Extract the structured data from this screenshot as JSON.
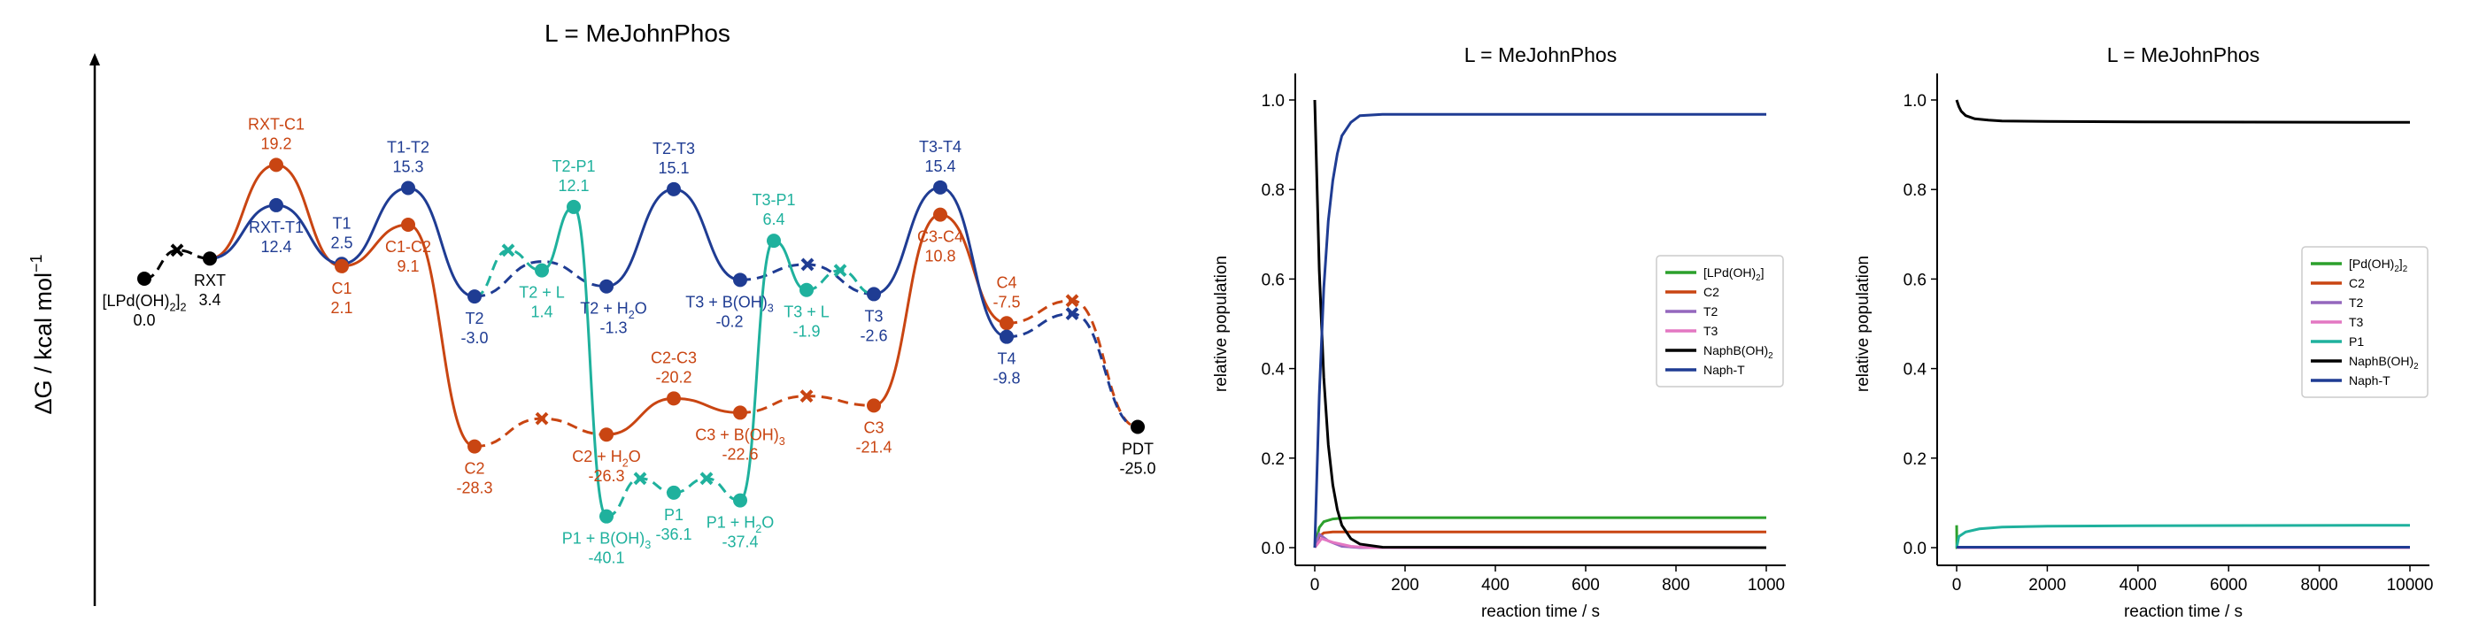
{
  "chart_data": [
    {
      "type": "energy-profile",
      "title": "L = MeJohnPhos",
      "ylabel": "ΔG / kcal mol",
      "ylabel_sup": "−1",
      "colors": {
        "black": "#000000",
        "orange": "#c94512",
        "blue": "#1f3c93",
        "teal": "#1fb19d"
      },
      "states": [
        {
          "id": "LPdOH2",
          "label": "[LPd(OH)",
          "label_sub": "2",
          "label_tail": "]",
          "label_sub2": "2",
          "value": "0.0",
          "g": 0.0,
          "color": "black",
          "label_pos": "below"
        },
        {
          "id": "RXT",
          "label": "RXT",
          "value": "3.4",
          "g": 3.4,
          "color": "black",
          "label_pos": "below"
        },
        {
          "id": "RXT-C1",
          "label": "RXT-C1",
          "value": "19.2",
          "g": 19.2,
          "color": "orange",
          "label_pos": "above"
        },
        {
          "id": "RXT-T1",
          "label": "RXT-T1",
          "value": "12.4",
          "g": 12.4,
          "color": "blue",
          "label_pos": "below"
        },
        {
          "id": "T1",
          "label": "T1",
          "value": "2.5",
          "g": 2.5,
          "color": "blue",
          "label_pos": "above"
        },
        {
          "id": "C1",
          "label": "C1",
          "value": "2.1",
          "g": 2.1,
          "color": "orange",
          "label_pos": "below"
        },
        {
          "id": "T1-T2",
          "label": "T1-T2",
          "value": "15.3",
          "g": 15.3,
          "color": "blue",
          "label_pos": "above"
        },
        {
          "id": "C1-C2",
          "label": "C1-C2",
          "value": "9.1",
          "g": 9.1,
          "color": "orange",
          "label_pos": "below"
        },
        {
          "id": "T2",
          "label": "T2",
          "value": "-3.0",
          "g": -3.0,
          "color": "blue",
          "label_pos": "below"
        },
        {
          "id": "T2+L",
          "label": "T2 + L",
          "value": "1.4",
          "g": 1.4,
          "color": "teal",
          "label_pos": "below"
        },
        {
          "id": "T2-P1",
          "label": "T2-P1",
          "value": "12.1",
          "g": 12.1,
          "color": "teal",
          "label_pos": "above"
        },
        {
          "id": "T2+H2O",
          "label": "T2 + H",
          "label_sub": "2",
          "label_tail": "O",
          "value": "-1.3",
          "g": -1.3,
          "color": "blue",
          "label_pos": "below"
        },
        {
          "id": "T2-T3",
          "label": "T2-T3",
          "value": "15.1",
          "g": 15.1,
          "color": "blue",
          "label_pos": "above"
        },
        {
          "id": "T3+BOH3",
          "label": "T3 + B(OH)",
          "label_sub": "3",
          "value": "-0.2",
          "g": -0.2,
          "color": "blue",
          "label_pos": "below"
        },
        {
          "id": "T3-P1",
          "label": "T3-P1",
          "value": "6.4",
          "g": 6.4,
          "color": "teal",
          "label_pos": "above"
        },
        {
          "id": "T3+L",
          "label": "T3 + L",
          "value": "-1.9",
          "g": -1.9,
          "color": "teal",
          "label_pos": "below"
        },
        {
          "id": "T3",
          "label": "T3",
          "value": "-2.6",
          "g": -2.6,
          "color": "blue",
          "label_pos": "below"
        },
        {
          "id": "T3-T4",
          "label": "T3-T4",
          "value": "15.4",
          "g": 15.4,
          "color": "blue",
          "label_pos": "above"
        },
        {
          "id": "C3-C4",
          "label": "C3-C4",
          "value": "10.8",
          "g": 10.8,
          "color": "orange",
          "label_pos": "below"
        },
        {
          "id": "C4",
          "label": "C4",
          "value": "-7.5",
          "g": -7.5,
          "color": "orange",
          "label_pos": "above"
        },
        {
          "id": "T4",
          "label": "T4",
          "value": "-9.8",
          "g": -9.8,
          "color": "blue",
          "label_pos": "below"
        },
        {
          "id": "PDT",
          "label": "PDT",
          "value": "-25.0",
          "g": -25.0,
          "color": "black",
          "label_pos": "below"
        },
        {
          "id": "C2",
          "label": "C2",
          "value": "-28.3",
          "g": -28.3,
          "color": "orange",
          "label_pos": "below"
        },
        {
          "id": "C2+H2O",
          "label": "C2 + H",
          "label_sub": "2",
          "label_tail": "O",
          "value": "-26.3",
          "g": -26.3,
          "color": "orange",
          "label_pos": "below"
        },
        {
          "id": "C2-C3",
          "label": "C2-C3",
          "value": "-20.2",
          "g": -20.2,
          "color": "orange",
          "label_pos": "above"
        },
        {
          "id": "C3+BOH3",
          "label": "C3 + B(OH)",
          "label_sub": "3",
          "value": "-22.6",
          "g": -22.6,
          "color": "orange",
          "label_pos": "below"
        },
        {
          "id": "C3",
          "label": "C3",
          "value": "-21.4",
          "g": -21.4,
          "color": "orange",
          "label_pos": "below"
        },
        {
          "id": "P1+BOH3",
          "label": "P1 + B(OH)",
          "label_sub": "3",
          "value": "-40.1",
          "g": -40.1,
          "color": "teal",
          "label_pos": "below"
        },
        {
          "id": "P1",
          "label": "P1",
          "value": "-36.1",
          "g": -36.1,
          "color": "teal",
          "label_pos": "below"
        },
        {
          "id": "P1+H2O",
          "label": "P1 + H",
          "label_sub": "2",
          "label_tail": "O",
          "value": "-37.4",
          "g": -37.4,
          "color": "teal",
          "label_pos": "below"
        }
      ]
    },
    {
      "type": "line",
      "title": "L = MeJohnPhos",
      "xlabel": "reaction time / s",
      "ylabel": "relative population",
      "xlim": [
        0,
        1000
      ],
      "ylim": [
        0,
        1
      ],
      "xticks": [
        "0",
        "200",
        "400",
        "600",
        "800",
        "1000"
      ],
      "yticks": [
        "0.0",
        "0.2",
        "0.4",
        "0.6",
        "0.8",
        "1.0"
      ],
      "legend_position": "center-right",
      "series": [
        {
          "name": "[LPd(OH)",
          "name_sub": "2",
          "name_tail": "]",
          "color": "#2ca02c",
          "x": [
            0,
            10,
            20,
            40,
            60,
            100,
            200,
            1000
          ],
          "y": [
            0,
            0.045,
            0.058,
            0.064,
            0.066,
            0.067,
            0.067,
            0.067
          ]
        },
        {
          "name": "C2",
          "color": "#c94512",
          "x": [
            0,
            10,
            20,
            40,
            100,
            1000
          ],
          "y": [
            0,
            0.025,
            0.033,
            0.035,
            0.035,
            0.035
          ]
        },
        {
          "name": "T2",
          "color": "#9467bd",
          "x": [
            0,
            10,
            30,
            60,
            100,
            1000
          ],
          "y": [
            0,
            0.03,
            0.015,
            0.003,
            0,
            0
          ]
        },
        {
          "name": "T3",
          "color": "#e377c2",
          "x": [
            0,
            15,
            40,
            80,
            120,
            1000
          ],
          "y": [
            0,
            0.02,
            0.012,
            0.003,
            0,
            0
          ]
        },
        {
          "name": "NaphB(OH)",
          "name_sub": "2",
          "color": "#000000",
          "x": [
            0,
            10,
            20,
            30,
            40,
            50,
            60,
            80,
            100,
            150,
            1000
          ],
          "y": [
            1.0,
            0.62,
            0.38,
            0.23,
            0.14,
            0.085,
            0.05,
            0.02,
            0.008,
            0.001,
            0
          ]
        },
        {
          "name": "Naph-T",
          "color": "#1f3c93",
          "x": [
            0,
            10,
            20,
            30,
            40,
            50,
            60,
            80,
            100,
            150,
            1000
          ],
          "y": [
            0,
            0.34,
            0.58,
            0.73,
            0.82,
            0.88,
            0.92,
            0.95,
            0.965,
            0.968,
            0.968
          ]
        }
      ]
    },
    {
      "type": "line",
      "title": "L = MeJohnPhos",
      "xlabel": "reaction time / s",
      "ylabel": "relative population",
      "xlim": [
        0,
        10000
      ],
      "ylim": [
        0,
        1
      ],
      "xticks": [
        "0",
        "2000",
        "4000",
        "6000",
        "8000",
        "10000"
      ],
      "yticks": [
        "0.0",
        "0.2",
        "0.4",
        "0.6",
        "0.8",
        "1.0"
      ],
      "legend_position": "center-right",
      "series": [
        {
          "name": "[Pd(OH)",
          "name_sub": "2",
          "name_tail": "]",
          "name_sub2": "2",
          "color": "#2ca02c",
          "x": [
            0,
            5,
            20,
            1000,
            10000
          ],
          "y": [
            0.05,
            0.0,
            0.0,
            0.0,
            0.0
          ]
        },
        {
          "name": "C2",
          "color": "#c94512",
          "x": [
            0,
            10000
          ],
          "y": [
            0,
            0
          ]
        },
        {
          "name": "T2",
          "color": "#9467bd",
          "x": [
            0,
            10000
          ],
          "y": [
            0,
            0
          ]
        },
        {
          "name": "T3",
          "color": "#e377c2",
          "x": [
            0,
            10000
          ],
          "y": [
            0,
            0
          ]
        },
        {
          "name": "P1",
          "color": "#1fb19d",
          "x": [
            0,
            50,
            200,
            500,
            1000,
            2000,
            4000,
            10000
          ],
          "y": [
            0,
            0.025,
            0.035,
            0.042,
            0.046,
            0.048,
            0.049,
            0.05
          ]
        },
        {
          "name": "NaphB(OH)",
          "name_sub": "2",
          "color": "#000000",
          "x": [
            0,
            50,
            100,
            200,
            400,
            700,
            1000,
            2000,
            4000,
            10000
          ],
          "y": [
            1.0,
            0.985,
            0.975,
            0.965,
            0.958,
            0.955,
            0.953,
            0.952,
            0.951,
            0.95
          ]
        },
        {
          "name": "Naph-T",
          "color": "#1f3c93",
          "x": [
            0,
            10000
          ],
          "y": [
            0.001,
            0.001
          ]
        }
      ]
    }
  ]
}
